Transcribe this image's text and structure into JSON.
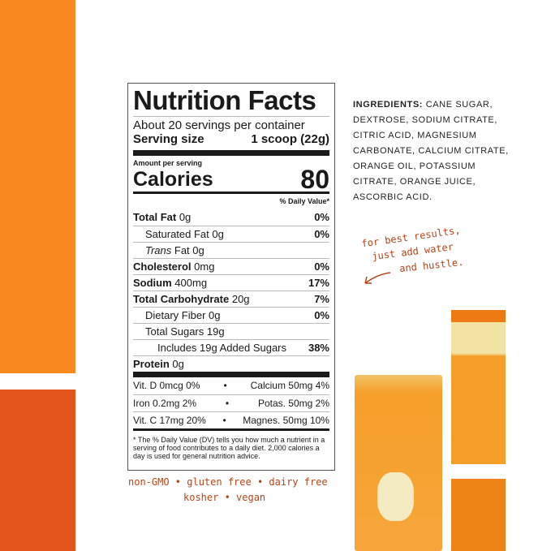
{
  "nutrition": {
    "title": "Nutrition Facts",
    "servings": "About 20 servings per container",
    "serving_size_label": "Serving size",
    "serving_size_value": "1 scoop (22g)",
    "amount_per_serving": "Amount per serving",
    "calories_label": "Calories",
    "calories_value": "80",
    "dv_header": "% Daily Value*",
    "rows": [
      {
        "label": "Total Fat",
        "amount": "0g",
        "dv": "0%",
        "bold": true,
        "indent": 0
      },
      {
        "label": "Saturated Fat",
        "amount": "0g",
        "dv": "0%",
        "bold": false,
        "indent": 1
      },
      {
        "label": "Trans",
        "amount": "Fat 0g",
        "dv": "",
        "bold": false,
        "indent": 1,
        "italic": true
      },
      {
        "label": "Cholesterol",
        "amount": "0mg",
        "dv": "0%",
        "bold": true,
        "indent": 0
      },
      {
        "label": "Sodium",
        "amount": "400mg",
        "dv": "17%",
        "bold": true,
        "indent": 0
      },
      {
        "label": "Total Carbohydrate",
        "amount": "20g",
        "dv": "7%",
        "bold": true,
        "indent": 0
      },
      {
        "label": "Dietary Fiber",
        "amount": "0g",
        "dv": "0%",
        "bold": false,
        "indent": 1
      },
      {
        "label": "Total Sugars",
        "amount": "19g",
        "dv": "",
        "bold": false,
        "indent": 1
      },
      {
        "label": "Includes 19g Added Sugars",
        "amount": "",
        "dv": "38%",
        "bold": false,
        "indent": 2
      },
      {
        "label": "Protein",
        "amount": "0g",
        "dv": "",
        "bold": true,
        "indent": 0
      }
    ],
    "vitamins": [
      {
        "left": "Vit. D 0mcg 0%",
        "right": "Calcium 50mg 4%"
      },
      {
        "left": "Iron 0.2mg 2%",
        "right": "Potas. 50mg 2%"
      },
      {
        "left": "Vit. C 17mg 20%",
        "right": "Magnes. 50mg 10%"
      }
    ],
    "footnote": "* The % Daily Value (DV) tells you how much a nutrient in a serving of food contributes to a daily diet. 2,000 calories a day is used for general nutrition advice."
  },
  "ingredients": {
    "label": "INGREDIENTS:",
    "text": "CANE SUGAR, DEXTROSE, SODIUM CITRATE, CITRIC ACID, MAGNESIUM CARBONATE, CALCIUM CITRATE, ORANGE OIL, POTASSIUM CITRATE, ORANGE JUICE, ASCORBIC ACID."
  },
  "handwritten": {
    "tip": [
      "for best results,",
      "just add water",
      "and hustle."
    ],
    "claims": [
      "non-GMO • gluten free • dairy free",
      "kosher • vegan"
    ]
  },
  "colors": {
    "orange": "#F7891F",
    "red_orange": "#E3561B",
    "handwriting": "#B5451B"
  }
}
